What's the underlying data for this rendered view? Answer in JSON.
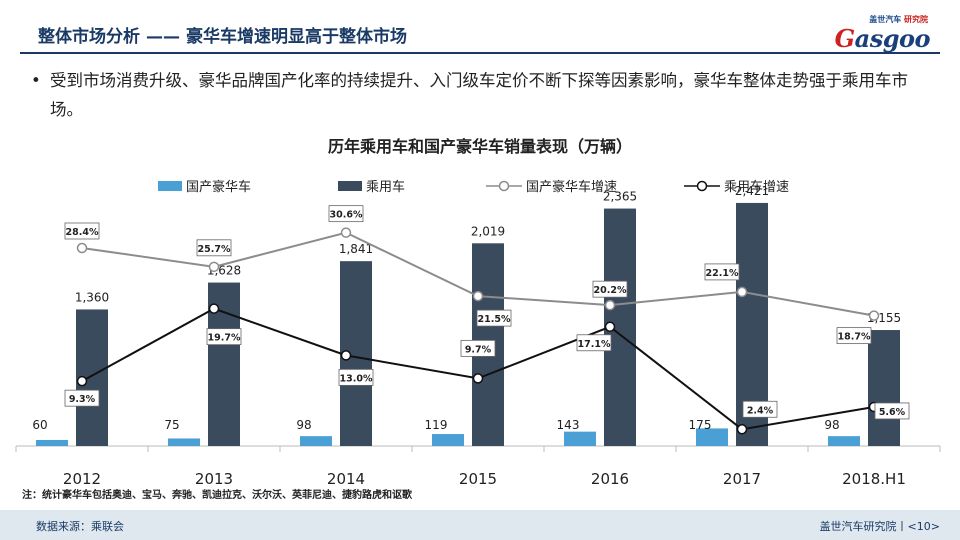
{
  "header": {
    "section": "整体市场分析",
    "dash": "——",
    "title": "豪华车增速明显高于整体市场"
  },
  "logo": {
    "brand_cn_1": "盖世汽车",
    "brand_cn_2": "研究院",
    "brand_en_1": "G",
    "brand_en_2": "asgoo"
  },
  "bullet": {
    "dot": "•",
    "text": "受到市场消费升级、豪华品牌国产化率的持续提升、入门级车定价不断下探等因素影响，豪华车整体走势强于乘用车市场。"
  },
  "colors": {
    "domestic_bar": "#4a9fd4",
    "passenger_bar": "#3b4b5e",
    "domestic_line": "#8c8c8c",
    "passenger_line": "#111111",
    "header": "#1a3a66"
  },
  "chart_data": {
    "type": "bar+line",
    "title": "历年乘用车和国产豪华车销量表现（万辆）",
    "categories": [
      "2012",
      "2013",
      "2014",
      "2015",
      "2016",
      "2017",
      "2018.H1"
    ],
    "series": [
      {
        "name": "国产豪华车",
        "kind": "bar",
        "values": [
          60,
          75,
          98,
          119,
          143,
          175,
          98
        ],
        "labels": [
          "60",
          "75",
          "98",
          "119",
          "143",
          "175",
          "98"
        ]
      },
      {
        "name": "乘用车",
        "kind": "bar",
        "values": [
          1360,
          1628,
          1841,
          2019,
          2365,
          2421,
          1155
        ],
        "labels": [
          "1,360",
          "1,628",
          "1,841",
          "2,019",
          "2,365",
          "2,421",
          "1,155"
        ]
      },
      {
        "name": "国产豪华车增速",
        "kind": "line",
        "values": [
          28.4,
          25.7,
          30.6,
          21.5,
          20.2,
          22.1,
          18.7
        ],
        "labels": [
          "28.4%",
          "25.7%",
          "30.6%",
          "21.5%",
          "20.2%",
          "22.1%",
          "18.7%"
        ]
      },
      {
        "name": "乘用车增速",
        "kind": "line",
        "values": [
          9.3,
          19.7,
          13.0,
          9.7,
          17.1,
          2.4,
          5.6
        ],
        "labels": [
          "9.3%",
          "19.7%",
          "13.0%",
          "9.7%",
          "17.1%",
          "2.4%",
          "5.6%"
        ]
      }
    ],
    "ylim_bars": [
      0,
      2500
    ],
    "ylim_lines": [
      0,
      36
    ],
    "legend_position": "top"
  },
  "note": "注：统计豪华车包括奥迪、宝马、奔驰、凯迪拉克、沃尔沃、英菲尼迪、捷豹路虎和讴歌",
  "footer": {
    "source": "数据来源：乘联会",
    "page": "盖世汽车研究院丨<10>"
  }
}
